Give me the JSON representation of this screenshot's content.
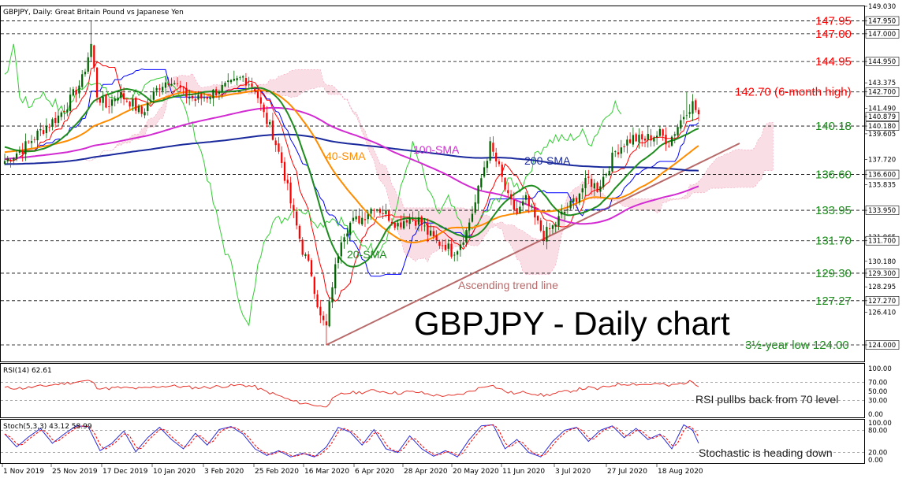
{
  "header": {
    "symbol_line": "GBPJPY, Daily:  Great Britain Pound vs Japanese Yen",
    "big_title": "GBPJPY - Daily chart"
  },
  "colors": {
    "bull_candle": "#006400",
    "bear_candle": "#ff0000",
    "sma20": "#1e8c1e",
    "sma40": "#ff8c00",
    "sma100": "#d22bd2",
    "sma200": "#1a2a9c",
    "ichimoku_tenkan": "#ff0000",
    "ichimoku_kijun": "#0000ff",
    "ichimoku_chikou": "#32cd32",
    "cloud": "#f2a0b8",
    "trend_line": "#b86a6a",
    "level_line": "#000000",
    "level_red": "#ff0000",
    "level_green": "#1e8c1e",
    "rsi_line": "#e8332a",
    "stoch_main": "#2b2bd8",
    "stoch_signal": "#ff0000"
  },
  "chart_data": [
    {
      "type": "candlestick",
      "panel": "price",
      "title": "GBPJPY, Daily:  Great Britain Pound vs Japanese Yen",
      "ylim": [
        124.0,
        149.03
      ],
      "y_ticks": [
        "149.030",
        "147.950",
        "147.000",
        "144.950",
        "143.375",
        "142.700",
        "141.490",
        "140.879",
        "140.180",
        "139.605",
        "137.720",
        "136.600",
        "135.835",
        "133.950",
        "131.965",
        "131.700",
        "130.180",
        "129.300",
        "128.295",
        "127.270",
        "126.410",
        "124.000"
      ],
      "x_ticks": [
        "1 Nov 2019",
        "25 Nov 2019",
        "17 Dec 2019",
        "10 Jan 2020",
        "3 Feb 2020",
        "25 Feb 2020",
        "16 Mar 2020",
        "6 Apr 2020",
        "28 Apr 2020",
        "20 May 2020",
        "11 Jun 2020",
        "3 Jul 2020",
        "27 Jul 2020",
        "18 Aug 2020"
      ],
      "current_price": "140.879",
      "levels": [
        {
          "value": 147.95,
          "label": "147.95",
          "tag": "147.950",
          "color": "red"
        },
        {
          "value": 147.0,
          "label": "147.00",
          "tag": "147.000",
          "color": "red"
        },
        {
          "value": 144.95,
          "label": "144.95",
          "tag": "144.950",
          "color": "red"
        },
        {
          "value": 142.7,
          "label": "142.70 (6-month high)",
          "tag": "142.700",
          "color": "red"
        },
        {
          "value": 140.18,
          "label": "140.18",
          "tag": "140.180",
          "color": "green"
        },
        {
          "value": 136.6,
          "label": "136.60",
          "tag": "136.600",
          "color": "green"
        },
        {
          "value": 133.95,
          "label": "133.95",
          "tag": "133.950",
          "color": "green"
        },
        {
          "value": 131.7,
          "label": "131.70",
          "tag": "131.700",
          "color": "green"
        },
        {
          "value": 129.3,
          "label": "129.30",
          "tag": "129.300",
          "color": "green"
        },
        {
          "value": 127.27,
          "label": "127.27",
          "tag": "127.270",
          "color": "green"
        },
        {
          "value": 124.0,
          "label": "3½-year low 124.00",
          "tag": "124.000",
          "color": "green"
        }
      ],
      "ma_labels": {
        "sma20": "20-SMA",
        "sma40": "40-SMA",
        "sma100": "100-SMA",
        "sma200": "200-SMA"
      },
      "trend_line_label": "Ascending trend line",
      "anchors": [
        [
          0,
          137.6
        ],
        [
          6,
          138.5
        ],
        [
          12,
          139.8
        ],
        [
          18,
          140.9
        ],
        [
          22,
          142.1
        ],
        [
          26,
          143.6
        ],
        [
          29,
          146.2
        ],
        [
          31,
          142.5
        ],
        [
          34,
          141.6
        ],
        [
          38,
          142.6
        ],
        [
          42,
          142.0
        ],
        [
          46,
          141.1
        ],
        [
          52,
          143.2
        ],
        [
          56,
          143.7
        ],
        [
          60,
          142.6
        ],
        [
          64,
          142.1
        ],
        [
          68,
          142.4
        ],
        [
          72,
          142.9
        ],
        [
          76,
          143.2
        ],
        [
          80,
          143.8
        ],
        [
          84,
          143.0
        ],
        [
          87,
          141.0
        ],
        [
          90,
          139.6
        ],
        [
          93,
          137.5
        ],
        [
          96,
          134.5
        ],
        [
          100,
          131.0
        ],
        [
          103,
          129.3
        ],
        [
          106,
          126.0
        ],
        [
          108,
          125.3
        ],
        [
          110,
          128.5
        ],
        [
          113,
          132.0
        ],
        [
          116,
          133.0
        ],
        [
          120,
          133.4
        ],
        [
          124,
          134.3
        ],
        [
          128,
          133.7
        ],
        [
          132,
          132.9
        ],
        [
          135,
          133.4
        ],
        [
          139,
          133.2
        ],
        [
          142,
          132.3
        ],
        [
          145,
          131.6
        ],
        [
          148,
          131.4
        ],
        [
          150,
          130.9
        ],
        [
          152,
          131.2
        ],
        [
          155,
          132.4
        ],
        [
          158,
          134.5
        ],
        [
          161,
          137.2
        ],
        [
          163,
          138.7
        ],
        [
          166,
          137.0
        ],
        [
          169,
          134.8
        ],
        [
          172,
          133.7
        ],
        [
          175,
          134.7
        ],
        [
          178,
          133.3
        ],
        [
          181,
          132.1
        ],
        [
          184,
          132.7
        ],
        [
          187,
          133.6
        ],
        [
          190,
          134.3
        ],
        [
          193,
          135.3
        ],
        [
          196,
          136.2
        ],
        [
          199,
          135.6
        ],
        [
          202,
          136.8
        ],
        [
          205,
          138.3
        ],
        [
          208,
          138.9
        ],
        [
          211,
          139.3
        ],
        [
          214,
          139.1
        ],
        [
          217,
          139.4
        ],
        [
          220,
          139.6
        ],
        [
          223,
          139.0
        ],
        [
          226,
          140.2
        ],
        [
          229,
          141.4
        ],
        [
          231,
          141.8
        ],
        [
          233,
          141.0
        ]
      ],
      "n_candles": 234
    },
    {
      "type": "line",
      "panel": "rsi",
      "title": "RSI(14) 62.61",
      "ylim": [
        0,
        100
      ],
      "y_ticks": [
        "100.00",
        "70.00",
        "50.00",
        "30.00",
        "0.00"
      ],
      "reference_levels": [
        70,
        30
      ],
      "annotation": "RSI pullbs back from 70 level",
      "anchors": [
        [
          0,
          58
        ],
        [
          6,
          57
        ],
        [
          12,
          61
        ],
        [
          18,
          66
        ],
        [
          22,
          69
        ],
        [
          26,
          72
        ],
        [
          29,
          73
        ],
        [
          31,
          59
        ],
        [
          34,
          56
        ],
        [
          38,
          58
        ],
        [
          42,
          57
        ],
        [
          46,
          56
        ],
        [
          52,
          61
        ],
        [
          56,
          62
        ],
        [
          60,
          60
        ],
        [
          64,
          58
        ],
        [
          68,
          59
        ],
        [
          72,
          61
        ],
        [
          76,
          62
        ],
        [
          80,
          64
        ],
        [
          84,
          60
        ],
        [
          87,
          51
        ],
        [
          90,
          45
        ],
        [
          93,
          38
        ],
        [
          96,
          30
        ],
        [
          100,
          24
        ],
        [
          103,
          22
        ],
        [
          106,
          17
        ],
        [
          108,
          19
        ],
        [
          110,
          32
        ],
        [
          113,
          44
        ],
        [
          116,
          47
        ],
        [
          120,
          48
        ],
        [
          124,
          52
        ],
        [
          128,
          49
        ],
        [
          132,
          46
        ],
        [
          135,
          49
        ],
        [
          139,
          48
        ],
        [
          142,
          44
        ],
        [
          145,
          41
        ],
        [
          148,
          41
        ],
        [
          150,
          39
        ],
        [
          152,
          42
        ],
        [
          155,
          47
        ],
        [
          158,
          54
        ],
        [
          161,
          61
        ],
        [
          163,
          65
        ],
        [
          166,
          56
        ],
        [
          169,
          48
        ],
        [
          172,
          45
        ],
        [
          175,
          49
        ],
        [
          178,
          45
        ],
        [
          181,
          41
        ],
        [
          184,
          44
        ],
        [
          187,
          48
        ],
        [
          190,
          51
        ],
        [
          193,
          55
        ],
        [
          196,
          58
        ],
        [
          199,
          55
        ],
        [
          202,
          60
        ],
        [
          205,
          65
        ],
        [
          208,
          66
        ],
        [
          211,
          67
        ],
        [
          214,
          65
        ],
        [
          217,
          66
        ],
        [
          220,
          66
        ],
        [
          223,
          62
        ],
        [
          226,
          66
        ],
        [
          229,
          70
        ],
        [
          231,
          71
        ],
        [
          233,
          63
        ]
      ]
    },
    {
      "type": "line",
      "panel": "stochastic",
      "title": "Stoch(5,3,3) 43.12 58.99",
      "ylim": [
        0,
        100
      ],
      "y_ticks": [
        "100.00",
        "80.00",
        "20.00",
        "0.00"
      ],
      "reference_levels": [
        80,
        20
      ],
      "annotation": "Stochastic is heading down",
      "cycles": [
        [
          0,
          70
        ],
        [
          4,
          35
        ],
        [
          8,
          62
        ],
        [
          12,
          85
        ],
        [
          16,
          45
        ],
        [
          20,
          70
        ],
        [
          24,
          92
        ],
        [
          28,
          90
        ],
        [
          32,
          25
        ],
        [
          36,
          45
        ],
        [
          40,
          78
        ],
        [
          44,
          22
        ],
        [
          48,
          60
        ],
        [
          52,
          88
        ],
        [
          56,
          55
        ],
        [
          60,
          30
        ],
        [
          64,
          72
        ],
        [
          68,
          40
        ],
        [
          72,
          82
        ],
        [
          76,
          90
        ],
        [
          80,
          70
        ],
        [
          84,
          30
        ],
        [
          88,
          12
        ],
        [
          92,
          25
        ],
        [
          96,
          8
        ],
        [
          100,
          18
        ],
        [
          104,
          8
        ],
        [
          108,
          35
        ],
        [
          112,
          88
        ],
        [
          116,
          75
        ],
        [
          120,
          40
        ],
        [
          124,
          82
        ],
        [
          128,
          30
        ],
        [
          132,
          20
        ],
        [
          136,
          65
        ],
        [
          140,
          30
        ],
        [
          144,
          10
        ],
        [
          148,
          25
        ],
        [
          152,
          8
        ],
        [
          156,
          55
        ],
        [
          160,
          92
        ],
        [
          164,
          95
        ],
        [
          168,
          30
        ],
        [
          172,
          55
        ],
        [
          176,
          20
        ],
        [
          180,
          8
        ],
        [
          184,
          50
        ],
        [
          188,
          80
        ],
        [
          192,
          88
        ],
        [
          196,
          50
        ],
        [
          200,
          80
        ],
        [
          204,
          92
        ],
        [
          208,
          60
        ],
        [
          212,
          85
        ],
        [
          216,
          55
        ],
        [
          220,
          70
        ],
        [
          224,
          30
        ],
        [
          228,
          95
        ],
        [
          231,
          80
        ],
        [
          233,
          45
        ]
      ]
    }
  ]
}
